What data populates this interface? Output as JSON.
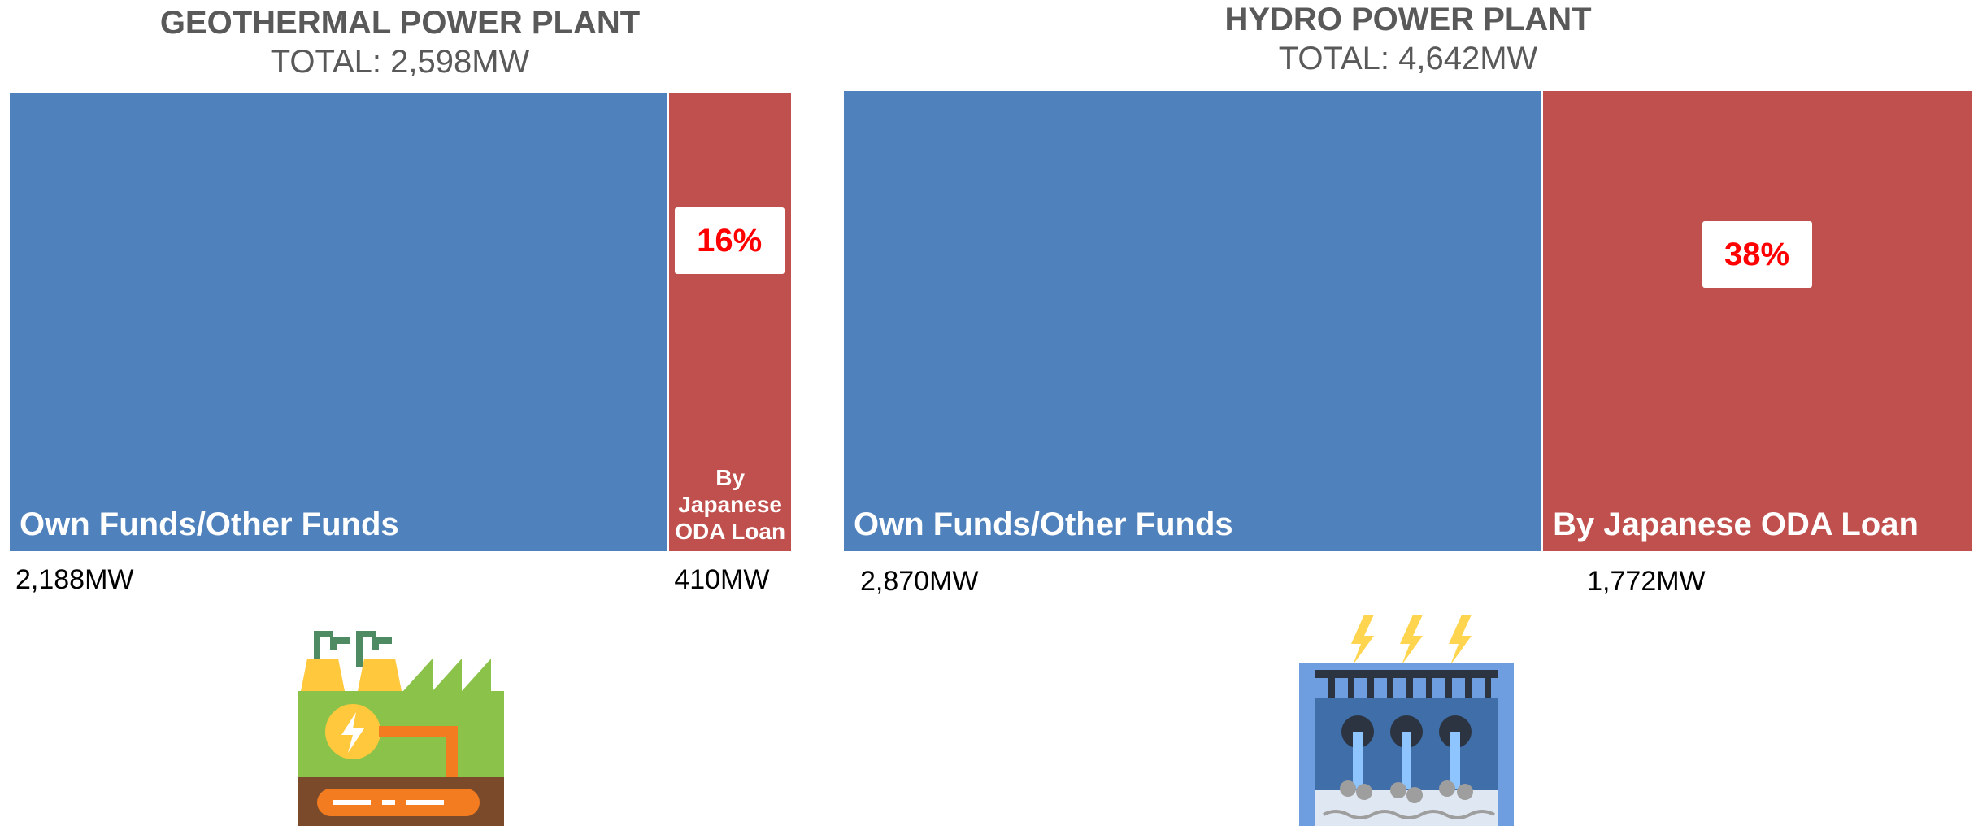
{
  "chart_data": [
    {
      "type": "stacked-bar",
      "title": "GEOTHERMAL POWER PLANT",
      "subtitle": "TOTAL: 2,598MW",
      "xlim": [
        0,
        2598
      ],
      "series": [
        {
          "name": "Own Funds/Other Funds",
          "color": "#4f81bd",
          "values": [
            2188
          ],
          "value_labels": [
            "2,188MW"
          ]
        },
        {
          "name": "By Japanese ODA Loan",
          "color": "#c0504d",
          "values": [
            410
          ],
          "value_labels": [
            "410MW"
          ]
        }
      ],
      "annotation": "16%"
    },
    {
      "type": "stacked-bar",
      "title": "HYDRO POWER PLANT",
      "subtitle": "TOTAL: 4,642MW",
      "xlim": [
        0,
        4642
      ],
      "series": [
        {
          "name": "Own Funds/Other Funds",
          "color": "#4f81bd",
          "values": [
            2870
          ],
          "value_labels": [
            "2,870MW"
          ]
        },
        {
          "name": "By Japanese ODA Loan",
          "color": "#c0504d",
          "values": [
            1772
          ],
          "value_labels": [
            "1,772MW"
          ]
        }
      ],
      "annotation": "38%"
    }
  ]
}
